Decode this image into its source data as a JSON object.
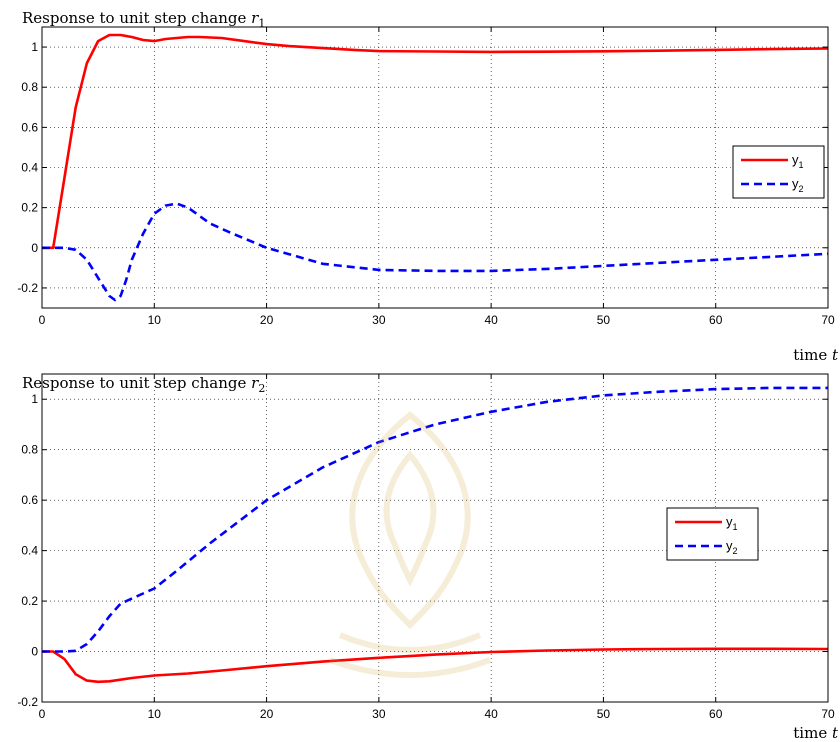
{
  "chart_data": [
    {
      "type": "line",
      "title_prefix": "Response to unit step change ",
      "title_var": "r",
      "title_sub": "1",
      "xlabel_prefix": "time ",
      "xlabel_var": "t",
      "xlim": [
        0,
        70
      ],
      "ylim": [
        -0.3,
        1.1
      ],
      "xticks": [
        0,
        10,
        20,
        30,
        40,
        50,
        60,
        70
      ],
      "yticks": [
        -0.2,
        0,
        0.2,
        0.4,
        0.6,
        0.8,
        1
      ],
      "xtick_labels": [
        "0",
        "10",
        "20",
        "30",
        "40",
        "50",
        "60",
        "70"
      ],
      "ytick_labels": [
        "-0.2",
        "0",
        "0.2",
        "0.4",
        "0.6",
        "0.8",
        "1"
      ],
      "grid": true,
      "legend_position": "right",
      "series": [
        {
          "name": "y",
          "name_sub": "1",
          "color": "#ff0000",
          "style": "solid",
          "x": [
            0,
            1,
            2,
            3,
            4,
            5,
            6,
            7,
            8,
            9,
            10,
            11,
            12,
            13,
            14,
            16,
            18,
            20,
            22,
            25,
            28,
            30,
            35,
            40,
            45,
            50,
            55,
            60,
            65,
            70
          ],
          "y": [
            0,
            0,
            0.35,
            0.7,
            0.92,
            1.03,
            1.06,
            1.06,
            1.05,
            1.035,
            1.03,
            1.04,
            1.045,
            1.05,
            1.05,
            1.045,
            1.03,
            1.015,
            1.005,
            0.995,
            0.985,
            0.98,
            0.978,
            0.976,
            0.977,
            0.979,
            0.982,
            0.986,
            0.99,
            0.993
          ]
        },
        {
          "name": "y",
          "name_sub": "2",
          "color": "#0000ff",
          "style": "dashed",
          "x": [
            0,
            2,
            3,
            4,
            5,
            6,
            6.5,
            7,
            7.5,
            8,
            9,
            10,
            11,
            12,
            13,
            14,
            15,
            17,
            20,
            25,
            30,
            35,
            40,
            45,
            50,
            55,
            60,
            65,
            70
          ],
          "y": [
            0,
            0,
            -0.01,
            -0.06,
            -0.15,
            -0.24,
            -0.26,
            -0.24,
            -0.16,
            -0.06,
            0.07,
            0.17,
            0.21,
            0.22,
            0.2,
            0.16,
            0.12,
            0.07,
            0.0,
            -0.08,
            -0.11,
            -0.115,
            -0.115,
            -0.105,
            -0.09,
            -0.075,
            -0.06,
            -0.045,
            -0.03
          ]
        }
      ]
    },
    {
      "type": "line",
      "title_prefix": "Response to unit step change ",
      "title_var": "r",
      "title_sub": "2",
      "xlabel_prefix": "time ",
      "xlabel_var": "t",
      "xlim": [
        0,
        70
      ],
      "ylim": [
        -0.2,
        1.1
      ],
      "xticks": [
        0,
        10,
        20,
        30,
        40,
        50,
        60,
        70
      ],
      "yticks": [
        -0.2,
        0,
        0.2,
        0.4,
        0.6,
        0.8,
        1
      ],
      "xtick_labels": [
        "0",
        "10",
        "20",
        "30",
        "40",
        "50",
        "60",
        "70"
      ],
      "ytick_labels": [
        "-0.2",
        "0",
        "0.2",
        "0.4",
        "0.6",
        "0.8",
        "1"
      ],
      "grid": true,
      "legend_position": "right",
      "series": [
        {
          "name": "y",
          "name_sub": "1",
          "color": "#ff0000",
          "style": "solid",
          "x": [
            0,
            1,
            2,
            3,
            4,
            5,
            6,
            8,
            10,
            13,
            16,
            20,
            25,
            30,
            35,
            40,
            45,
            50,
            55,
            60,
            65,
            70
          ],
          "y": [
            0,
            0,
            -0.03,
            -0.09,
            -0.115,
            -0.12,
            -0.118,
            -0.105,
            -0.095,
            -0.087,
            -0.075,
            -0.058,
            -0.04,
            -0.025,
            -0.012,
            -0.002,
            0.004,
            0.008,
            0.01,
            0.011,
            0.011,
            0.01
          ]
        },
        {
          "name": "y",
          "name_sub": "2",
          "color": "#0000ff",
          "style": "dashed",
          "x": [
            0,
            2,
            3,
            4,
            5,
            6,
            7,
            8,
            9,
            10,
            12,
            15,
            20,
            25,
            30,
            35,
            40,
            45,
            50,
            55,
            60,
            65,
            70
          ],
          "y": [
            0,
            0,
            0.003,
            0.03,
            0.08,
            0.14,
            0.19,
            0.21,
            0.23,
            0.25,
            0.32,
            0.43,
            0.6,
            0.73,
            0.83,
            0.9,
            0.95,
            0.99,
            1.015,
            1.03,
            1.04,
            1.045,
            1.045
          ]
        }
      ]
    }
  ]
}
